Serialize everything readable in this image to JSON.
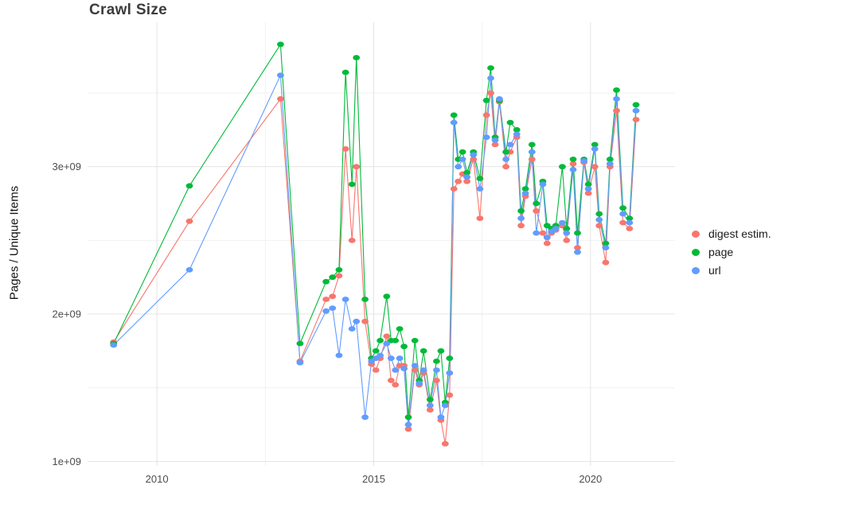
{
  "title": "Crawl Size",
  "ylabel": "Pages / Unique Items",
  "legend": {
    "position": "right",
    "items": [
      {
        "label": "digest estim.",
        "color": "#f8766d"
      },
      {
        "label": "page",
        "color": "#00ba38"
      },
      {
        "label": "url",
        "color": "#619cff"
      }
    ]
  },
  "chart_data": {
    "type": "line",
    "title": "Crawl Size",
    "xlabel": "",
    "ylabel": "Pages / Unique Items",
    "values_unit": "1e9 (values listed in billions of pages/items)",
    "xlim": [
      2008.4,
      2021.95
    ],
    "ylim": [
      0.97,
      3.98
    ],
    "grid": {
      "show": true,
      "major_color": "#e4e4e4",
      "minor_color": "#f1f1f1"
    },
    "x_ticks": [
      {
        "value": 2010,
        "label": "2010"
      },
      {
        "value": 2015,
        "label": "2015"
      },
      {
        "value": 2020,
        "label": "2020"
      }
    ],
    "y_ticks": [
      {
        "value": 1,
        "label": "1e+09"
      },
      {
        "value": 2,
        "label": "2e+09"
      },
      {
        "value": 3,
        "label": "3e+09"
      }
    ],
    "x_minor": [
      2012.5,
      2017.5
    ],
    "y_minor": [
      1.5,
      2.5,
      3.5
    ],
    "x": [
      2009.0,
      2010.75,
      2012.85,
      2013.3,
      2013.9,
      2014.05,
      2014.2,
      2014.35,
      2014.5,
      2014.6,
      2014.8,
      2014.95,
      2015.05,
      2015.15,
      2015.3,
      2015.4,
      2015.5,
      2015.6,
      2015.7,
      2015.8,
      2015.95,
      2016.05,
      2016.15,
      2016.3,
      2016.45,
      2016.55,
      2016.65,
      2016.75,
      2016.85,
      2016.95,
      2017.05,
      2017.15,
      2017.3,
      2017.45,
      2017.6,
      2017.7,
      2017.8,
      2017.9,
      2018.05,
      2018.15,
      2018.3,
      2018.4,
      2018.5,
      2018.65,
      2018.75,
      2018.9,
      2019.0,
      2019.1,
      2019.2,
      2019.35,
      2019.45,
      2019.6,
      2019.7,
      2019.85,
      2019.95,
      2020.1,
      2020.2,
      2020.35,
      2020.45,
      2020.6,
      2020.75,
      2020.9,
      2021.05
    ],
    "series": [
      {
        "name": "digest estim.",
        "color": "#f8766d",
        "values": [
          1.81,
          2.63,
          3.46,
          1.68,
          2.1,
          2.12,
          2.26,
          3.12,
          2.5,
          3.0,
          1.95,
          1.66,
          1.62,
          1.7,
          1.85,
          1.55,
          1.52,
          1.65,
          1.65,
          1.22,
          1.62,
          1.52,
          1.6,
          1.35,
          1.55,
          1.28,
          1.12,
          1.45,
          2.85,
          2.9,
          2.95,
          2.9,
          3.05,
          2.65,
          3.35,
          3.5,
          3.15,
          3.44,
          3.0,
          3.1,
          3.2,
          2.6,
          2.8,
          3.05,
          2.7,
          2.55,
          2.48,
          2.55,
          2.57,
          2.6,
          2.5,
          3.02,
          2.45,
          3.03,
          2.82,
          3.0,
          2.6,
          2.35,
          3.0,
          3.38,
          2.62,
          2.58,
          3.32
        ]
      },
      {
        "name": "page",
        "color": "#00ba38",
        "values": [
          1.8,
          2.87,
          3.83,
          1.8,
          2.22,
          2.25,
          2.3,
          3.64,
          2.88,
          3.74,
          2.1,
          1.7,
          1.75,
          1.82,
          2.12,
          1.82,
          1.82,
          1.9,
          1.78,
          1.3,
          1.82,
          1.55,
          1.75,
          1.42,
          1.68,
          1.75,
          1.4,
          1.7,
          3.35,
          3.05,
          3.1,
          2.96,
          3.1,
          2.92,
          3.45,
          3.67,
          3.2,
          3.45,
          3.1,
          3.3,
          3.25,
          2.7,
          2.85,
          3.15,
          2.75,
          2.9,
          2.6,
          2.58,
          2.6,
          3.0,
          2.58,
          3.05,
          2.55,
          3.05,
          2.88,
          3.15,
          2.68,
          2.48,
          3.05,
          3.52,
          2.72,
          2.65,
          3.42
        ]
      },
      {
        "name": "url",
        "color": "#619cff",
        "values": [
          1.79,
          2.3,
          3.62,
          1.67,
          2.02,
          2.04,
          1.72,
          2.1,
          1.9,
          1.95,
          1.3,
          1.68,
          1.7,
          1.72,
          1.8,
          1.7,
          1.62,
          1.7,
          1.63,
          1.25,
          1.65,
          1.53,
          1.62,
          1.38,
          1.62,
          1.3,
          1.38,
          1.6,
          3.3,
          3.0,
          3.05,
          2.93,
          3.08,
          2.85,
          3.2,
          3.6,
          3.18,
          3.46,
          3.05,
          3.15,
          3.22,
          2.65,
          2.82,
          3.1,
          2.55,
          2.88,
          2.52,
          2.56,
          2.58,
          2.62,
          2.55,
          2.98,
          2.42,
          3.04,
          2.85,
          3.12,
          2.64,
          2.45,
          3.02,
          3.46,
          2.68,
          2.62,
          3.38
        ]
      }
    ]
  }
}
